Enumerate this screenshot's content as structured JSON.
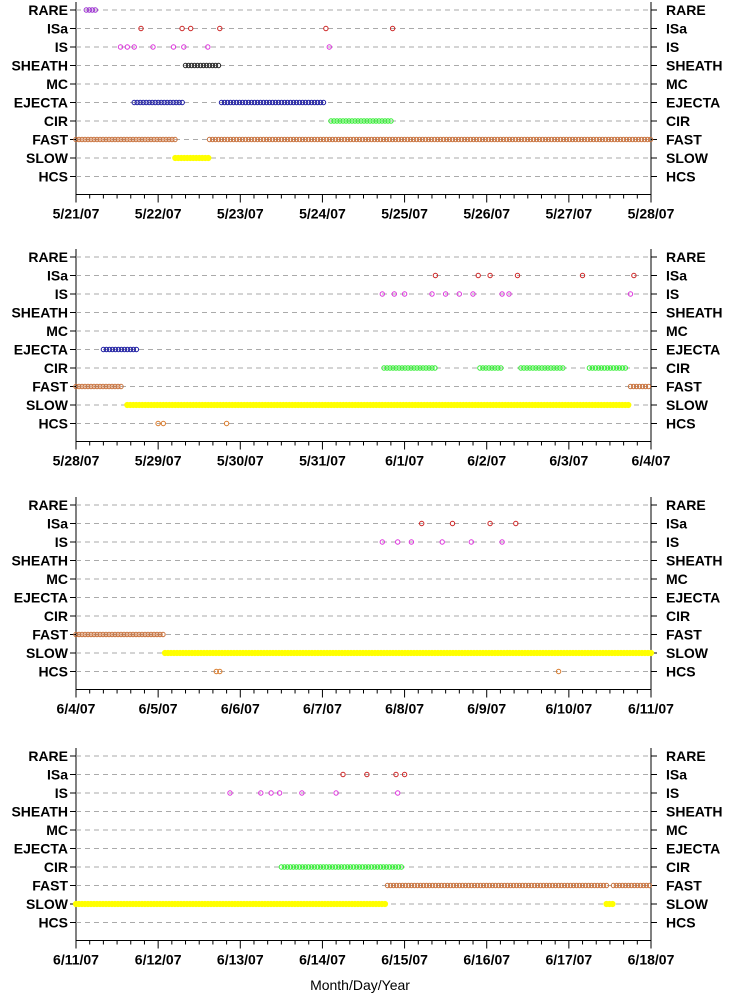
{
  "chart_data": {
    "type": "scatter",
    "xlabel": "Month/Day/Year",
    "categories": [
      "RARE",
      "ISa",
      "IS",
      "SHEATH",
      "MC",
      "EJECTA",
      "CIR",
      "FAST",
      "SLOW",
      "HCS"
    ],
    "colors": {
      "RARE": "#9b30d0",
      "ISa": "#cc2222",
      "IS": "#dd33dd",
      "SHEATH": "#222222",
      "EJECTA": "#1a1aa0",
      "CIR": "#33ee33",
      "FAST": "#c8703a",
      "SLOW": "#ffff00",
      "HCS": "#d97a2a",
      "gridline": "#aaaaaa"
    },
    "panels": [
      {
        "xlim": [
          "2007-05-21",
          "2007-05-28"
        ],
        "ticks": [
          "5/21/07",
          "5/22/07",
          "5/23/07",
          "5/24/07",
          "5/25/07",
          "5/26/07",
          "5/27/07",
          "5/28/07"
        ],
        "points": [
          {
            "category": "RARE",
            "x": [
              "2007-05-21T03:00",
              "2007-05-21T06:00"
            ]
          },
          {
            "category": "ISa",
            "x": [
              "2007-05-21T19:00",
              "2007-05-22T07:00",
              "2007-05-22T09:30",
              "2007-05-22T18:00",
              "2007-05-24T01:00",
              "2007-05-24T20:30"
            ]
          },
          {
            "category": "IS",
            "x": [
              "2007-05-21T13:00",
              "2007-05-21T15:00",
              "2007-05-21T17:00",
              "2007-05-21T22:30",
              "2007-05-22T04:30",
              "2007-05-22T07:30",
              "2007-05-22T14:30",
              "2007-05-24T02:00"
            ]
          },
          {
            "category": "SHEATH",
            "x": [
              "2007-05-22T08:00",
              "2007-05-22T18:00"
            ]
          },
          {
            "category": "EJECTA",
            "x": [
              "2007-05-21T17:00",
              "2007-05-22T07:30",
              "2007-05-22T18:30",
              "2007-05-24T00:30"
            ]
          },
          {
            "category": "CIR",
            "x": [
              "2007-05-24T02:30",
              "2007-05-24T20:30"
            ]
          },
          {
            "category": "FAST",
            "x": [
              "2007-05-21T00:00",
              "2007-05-22T05:00",
              "2007-05-22T15:00",
              "2007-05-28T00:00"
            ]
          },
          {
            "category": "SLOW",
            "x": [
              "2007-05-22T05:00",
              "2007-05-22T15:00"
            ]
          }
        ]
      },
      {
        "xlim": [
          "2007-05-28",
          "2007-06-04"
        ],
        "ticks": [
          "5/28/07",
          "5/29/07",
          "5/30/07",
          "5/31/07",
          "6/1/07",
          "6/2/07",
          "6/3/07",
          "6/4/07"
        ],
        "points": [
          {
            "category": "ISa",
            "x": [
              "2007-06-01T09:00",
              "2007-06-01T21:30",
              "2007-06-02T01:00",
              "2007-06-02T09:00",
              "2007-06-03T04:00",
              "2007-06-03T19:00"
            ]
          },
          {
            "category": "IS",
            "x": [
              "2007-05-31T17:30",
              "2007-05-31T21:00",
              "2007-06-01T00:00",
              "2007-06-01T08:00",
              "2007-06-01T12:00",
              "2007-06-01T16:00",
              "2007-06-01T20:00",
              "2007-06-02T04:30",
              "2007-06-02T06:30",
              "2007-06-03T18:00"
            ]
          },
          {
            "category": "EJECTA",
            "x": [
              "2007-05-28T08:00",
              "2007-05-28T18:00"
            ]
          },
          {
            "category": "CIR",
            "x": [
              "2007-05-31T18:00",
              "2007-06-01T09:00",
              "2007-06-01T22:00",
              "2007-06-02T05:00",
              "2007-06-02T10:00",
              "2007-06-02T23:00",
              "2007-06-03T06:00",
              "2007-06-03T17:00"
            ]
          },
          {
            "category": "FAST",
            "x": [
              "2007-05-28T00:00",
              "2007-05-28T14:00",
              "2007-06-03T18:00",
              "2007-06-04T00:00"
            ]
          },
          {
            "category": "SLOW",
            "x": [
              "2007-05-28T15:00",
              "2007-06-03T17:30"
            ]
          },
          {
            "category": "HCS",
            "x": [
              "2007-05-29T00:00",
              "2007-05-29T01:30",
              "2007-05-29T20:00"
            ]
          }
        ]
      },
      {
        "xlim": [
          "2007-06-04",
          "2007-06-11"
        ],
        "ticks": [
          "6/4/07",
          "6/5/07",
          "6/6/07",
          "6/7/07",
          "6/8/07",
          "6/9/07",
          "6/10/07",
          "6/11/07"
        ],
        "points": [
          {
            "category": "ISa",
            "x": [
              "2007-06-08T05:00",
              "2007-06-08T14:00",
              "2007-06-09T01:00",
              "2007-06-09T08:30"
            ]
          },
          {
            "category": "IS",
            "x": [
              "2007-06-07T17:30",
              "2007-06-07T22:00",
              "2007-06-08T02:00",
              "2007-06-08T11:00",
              "2007-06-08T19:30",
              "2007-06-09T04:30"
            ]
          },
          {
            "category": "FAST",
            "x": [
              "2007-06-04T00:00",
              "2007-06-05T02:00"
            ]
          },
          {
            "category": "SLOW",
            "x": [
              "2007-06-05T02:00",
              "2007-06-11T00:00"
            ]
          },
          {
            "category": "HCS",
            "x": [
              "2007-06-05T17:00",
              "2007-06-05T18:00",
              "2007-06-09T21:00"
            ]
          }
        ]
      },
      {
        "xlim": [
          "2007-06-11",
          "2007-06-18"
        ],
        "ticks": [
          "6/11/07",
          "6/12/07",
          "6/13/07",
          "6/14/07",
          "6/15/07",
          "6/16/07",
          "6/17/07",
          "6/18/07"
        ],
        "points": [
          {
            "category": "ISa",
            "x": [
              "2007-06-14T06:00",
              "2007-06-14T13:00",
              "2007-06-14T21:30",
              "2007-06-15T00:00"
            ]
          },
          {
            "category": "IS",
            "x": [
              "2007-06-12T21:00",
              "2007-06-13T06:00",
              "2007-06-13T09:00",
              "2007-06-13T11:30",
              "2007-06-13T18:00",
              "2007-06-14T04:00",
              "2007-06-14T22:00"
            ]
          },
          {
            "category": "CIR",
            "x": [
              "2007-06-13T12:00",
              "2007-06-14T23:30"
            ]
          },
          {
            "category": "FAST",
            "x": [
              "2007-06-14T19:00",
              "2007-06-17T11:00",
              "2007-06-17T13:00",
              "2007-06-18T00:00"
            ]
          },
          {
            "category": "SLOW",
            "x": [
              "2007-06-11T00:00",
              "2007-06-14T19:00",
              "2007-06-17T11:00",
              "2007-06-17T13:30"
            ]
          }
        ]
      }
    ]
  }
}
